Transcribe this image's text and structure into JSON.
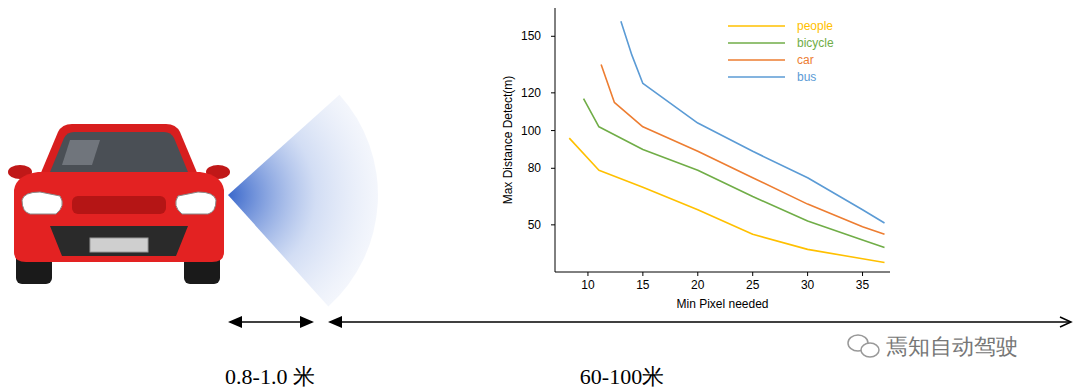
{
  "chart_data": {
    "type": "line",
    "x_label": "Min Pixel needed",
    "y_label": "Max Distance Detect(m)",
    "xlim": [
      7,
      37.5
    ],
    "xticks": [
      10,
      15,
      20,
      25,
      30,
      35
    ],
    "ylim": [
      25,
      165
    ],
    "yticks": [
      50,
      80,
      100,
      120,
      150
    ],
    "grid": false,
    "legend": "upper right",
    "series": [
      {
        "name": "people",
        "color": "#ffc000",
        "x": [
          8.3,
          11,
          15,
          20,
          25,
          30,
          35,
          37
        ],
        "values": [
          96,
          79,
          70,
          58,
          45,
          37,
          32,
          30
        ]
      },
      {
        "name": "bicycle",
        "color": "#70ad47",
        "x": [
          9.6,
          11,
          15,
          20,
          25,
          30,
          35,
          37
        ],
        "values": [
          117,
          102,
          90,
          79,
          65,
          52,
          42,
          38
        ]
      },
      {
        "name": "car",
        "color": "#ed7d31",
        "x": [
          11.2,
          12.4,
          15,
          20,
          25,
          30,
          35,
          37
        ],
        "values": [
          135,
          115,
          102,
          89,
          75,
          61,
          49,
          45
        ]
      },
      {
        "name": "bus",
        "color": "#5b9bd5",
        "x": [
          13,
          14,
          15,
          20,
          25,
          30,
          35,
          37
        ],
        "values": [
          158,
          140,
          125,
          104,
          89,
          75,
          58,
          51
        ]
      }
    ]
  },
  "distance_labels": {
    "near": "0.8-1.0 米",
    "far": "60-100米"
  },
  "watermark": "焉知自动驾驶"
}
